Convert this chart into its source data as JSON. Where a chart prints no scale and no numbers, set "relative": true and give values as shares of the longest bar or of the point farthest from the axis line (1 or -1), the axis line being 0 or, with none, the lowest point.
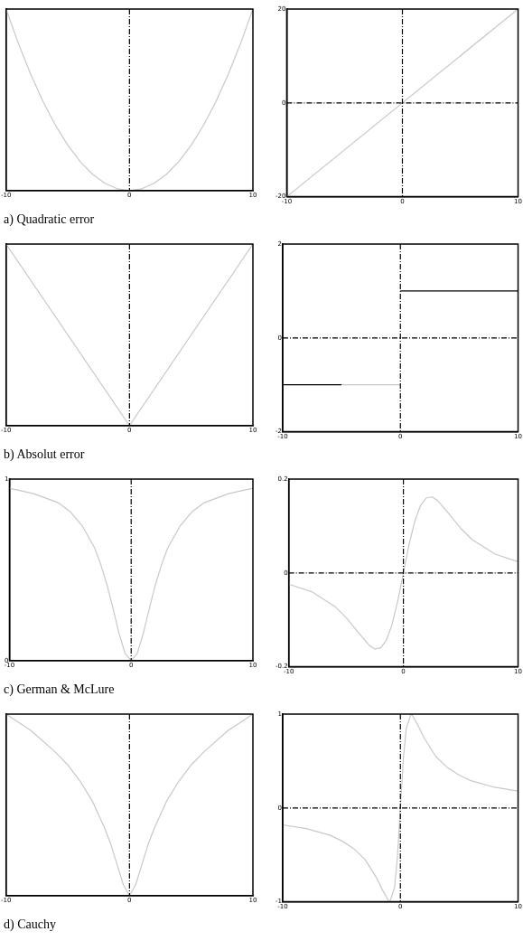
{
  "chart_data": [
    {
      "type": "line",
      "title": "a) Quadratic error",
      "relative": true,
      "tick_labels": "x",
      "xlim": [
        -10,
        10
      ],
      "xticks": [
        -10,
        0,
        10
      ],
      "grid": false,
      "marker": "none",
      "line_style": "solid",
      "series": [
        {
          "color": "#c8c8c8",
          "x": [
            -10,
            -9,
            -8,
            -7,
            -6,
            -5,
            -4,
            -3,
            -2,
            -1,
            0,
            1,
            2,
            3,
            4,
            5,
            6,
            7,
            8,
            9,
            10
          ],
          "values": [
            1,
            0.81,
            0.64,
            0.49,
            0.36,
            0.25,
            0.16,
            0.09,
            0.04,
            0.01,
            0,
            0.01,
            0.04,
            0.09,
            0.16,
            0.25,
            0.36,
            0.49,
            0.64,
            0.81,
            1
          ]
        }
      ],
      "ref_lines": [
        {
          "axis": "x",
          "value": 0,
          "color": "#000000",
          "line_style": "dashed"
        }
      ]
    },
    {
      "type": "line",
      "xlim": [
        -10,
        10
      ],
      "xticks": [
        -10,
        0,
        10
      ],
      "ylim": [
        -20,
        20
      ],
      "yticks": [
        -20,
        0,
        20
      ],
      "grid": false,
      "marker": "none",
      "line_style": "solid",
      "series": [
        {
          "color": "#c8c8c8",
          "x": [
            -10,
            10
          ],
          "values": [
            -20,
            20
          ]
        }
      ],
      "ref_lines": [
        {
          "axis": "x",
          "value": 0,
          "color": "#000000",
          "line_style": "dashed"
        },
        {
          "axis": "y",
          "value": 0,
          "color": "#000000",
          "line_style": "dashed"
        }
      ]
    },
    {
      "type": "line",
      "title": "b) Absolut error",
      "relative": true,
      "tick_labels": "x",
      "xlim": [
        -10,
        10
      ],
      "xticks": [
        -10,
        0,
        10
      ],
      "grid": false,
      "marker": "none",
      "line_style": "solid",
      "series": [
        {
          "color": "#c8c8c8",
          "x": [
            -10,
            0,
            10
          ],
          "values": [
            1,
            0,
            1
          ]
        }
      ],
      "ref_lines": [
        {
          "axis": "x",
          "value": 0,
          "color": "#000000",
          "line_style": "dashed"
        }
      ]
    },
    {
      "type": "line",
      "xlim": [
        -10,
        10
      ],
      "xticks": [
        -10,
        0,
        10
      ],
      "ylim": [
        -2,
        2
      ],
      "yticks": [
        -2,
        0,
        2
      ],
      "grid": false,
      "marker": "none",
      "line_style": "solid",
      "series": [
        {
          "color": "#000000",
          "x": [
            -10,
            -5
          ],
          "values": [
            -1,
            -1
          ]
        },
        {
          "color": "#000000",
          "x": [
            0,
            10
          ],
          "values": [
            1,
            1
          ]
        },
        {
          "color": "#c8c8c8",
          "x": [
            -5,
            0
          ],
          "values": [
            -1,
            -1
          ]
        }
      ],
      "ref_lines": [
        {
          "axis": "x",
          "value": 0,
          "color": "#000000",
          "line_style": "dashed"
        },
        {
          "axis": "y",
          "value": 0,
          "color": "#000000",
          "line_style": "dashed"
        }
      ]
    },
    {
      "type": "line",
      "title": "c) German & McLure",
      "xlim": [
        -10,
        10
      ],
      "xticks": [
        -10,
        0,
        10
      ],
      "ylim": [
        0,
        1
      ],
      "yticks": [
        0,
        1
      ],
      "grid": false,
      "marker": "none",
      "line_style": "solid",
      "series": [
        {
          "color": "#c8c8c8",
          "x": [
            -10,
            -8,
            -6,
            -5,
            -4,
            -3,
            -2.5,
            -2,
            -1.5,
            -1,
            -0.5,
            0,
            0.5,
            1,
            1.5,
            2,
            2.5,
            3,
            4,
            5,
            6,
            8,
            10
          ],
          "values": [
            0.95,
            0.92,
            0.87,
            0.82,
            0.74,
            0.62,
            0.53,
            0.42,
            0.29,
            0.15,
            0.04,
            0,
            0.04,
            0.15,
            0.29,
            0.42,
            0.53,
            0.62,
            0.74,
            0.82,
            0.87,
            0.92,
            0.95
          ]
        }
      ],
      "ref_lines": [
        {
          "axis": "x",
          "value": 0,
          "color": "#000000",
          "line_style": "dashed"
        }
      ]
    },
    {
      "type": "line",
      "xlim": [
        -10,
        10
      ],
      "xticks": [
        -10,
        0,
        10
      ],
      "ylim": [
        -0.2,
        0.2
      ],
      "yticks": [
        -0.2,
        0,
        0.2
      ],
      "grid": false,
      "marker": "none",
      "line_style": "solid",
      "series": [
        {
          "color": "#c8c8c8",
          "x": [
            -10,
            -8,
            -6,
            -5,
            -4,
            -3,
            -2.5,
            -2,
            -1.5,
            -1,
            -0.5,
            0,
            0.5,
            1,
            1.5,
            2,
            2.5,
            3,
            4,
            5,
            6,
            8,
            10
          ],
          "values": [
            -0.024,
            -0.04,
            -0.071,
            -0.095,
            -0.125,
            -0.154,
            -0.162,
            -0.16,
            -0.144,
            -0.111,
            -0.061,
            0,
            0.061,
            0.111,
            0.144,
            0.16,
            0.162,
            0.154,
            0.125,
            0.095,
            0.071,
            0.04,
            0.024
          ]
        }
      ],
      "ref_lines": [
        {
          "axis": "x",
          "value": 0,
          "color": "#000000",
          "line_style": "dashed"
        },
        {
          "axis": "y",
          "value": 0,
          "color": "#000000",
          "line_style": "dashed"
        }
      ]
    },
    {
      "type": "line",
      "title": "d) Cauchy",
      "relative": true,
      "tick_labels": "x",
      "xlim": [
        -10,
        10
      ],
      "xticks": [
        -10,
        0,
        10
      ],
      "grid": false,
      "marker": "none",
      "line_style": "solid",
      "series": [
        {
          "color": "#c8c8c8",
          "x": [
            -10,
            -8,
            -6,
            -5,
            -4,
            -3,
            -2,
            -1.5,
            -1,
            -0.5,
            0,
            0.5,
            1,
            1.5,
            2,
            3,
            4,
            5,
            6,
            8,
            10
          ],
          "values": [
            1,
            0.91,
            0.79,
            0.72,
            0.63,
            0.52,
            0.37,
            0.28,
            0.17,
            0.06,
            0,
            0.06,
            0.17,
            0.28,
            0.37,
            0.52,
            0.63,
            0.72,
            0.79,
            0.91,
            1
          ]
        }
      ],
      "ref_lines": [
        {
          "axis": "x",
          "value": 0,
          "color": "#000000",
          "line_style": "dashed"
        }
      ]
    },
    {
      "type": "line",
      "xlim": [
        -10,
        10
      ],
      "xticks": [
        -10,
        0,
        10
      ],
      "ylim": [
        -1,
        1
      ],
      "yticks": [
        -1,
        0,
        1
      ],
      "grid": false,
      "marker": "none",
      "line_style": "solid",
      "series": [
        {
          "color": "#c8c8c8",
          "x": [
            -10,
            -8,
            -6,
            -5,
            -4,
            -3,
            -2,
            -1.5,
            -1,
            -0.9,
            -0.5,
            -0.25,
            0,
            0.25,
            0.5,
            0.9,
            1,
            1.5,
            2,
            3,
            4,
            5,
            6,
            8,
            10
          ],
          "values": [
            -0.18,
            -0.22,
            -0.29,
            -0.35,
            -0.43,
            -0.55,
            -0.75,
            -0.88,
            -0.99,
            -1,
            -0.85,
            -0.52,
            0,
            0.52,
            0.85,
            1,
            0.99,
            0.88,
            0.75,
            0.55,
            0.43,
            0.35,
            0.29,
            0.22,
            0.18
          ]
        }
      ],
      "ref_lines": [
        {
          "axis": "x",
          "value": 0,
          "color": "#000000",
          "line_style": "dashed"
        },
        {
          "axis": "y",
          "value": 0,
          "color": "#000000",
          "line_style": "dashed"
        }
      ]
    }
  ]
}
